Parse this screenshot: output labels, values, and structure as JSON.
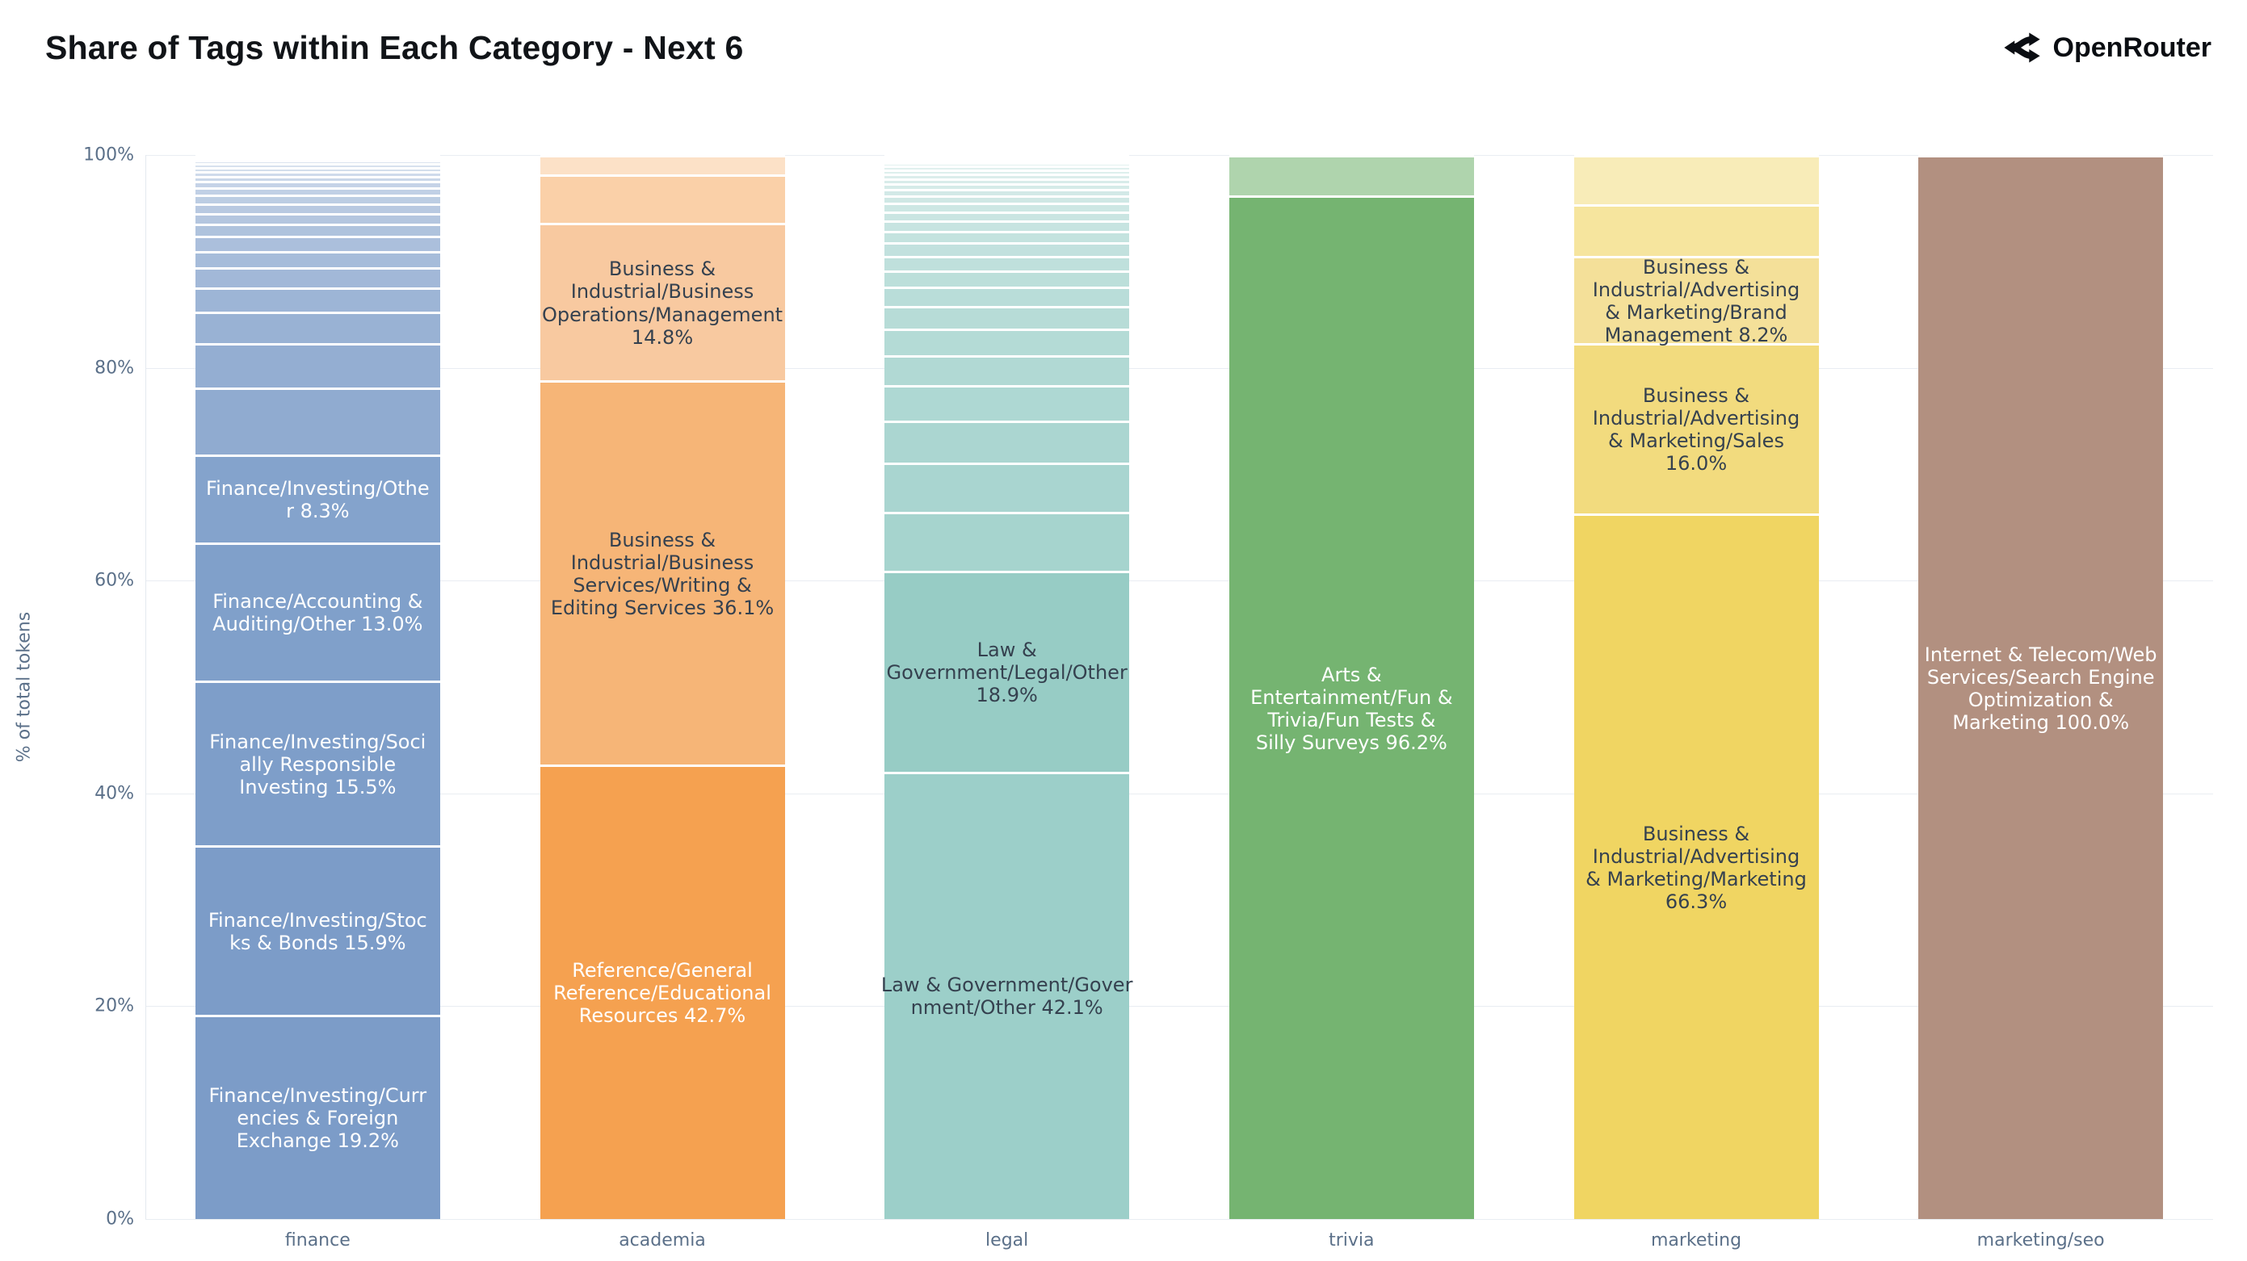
{
  "title": "Share of Tags within Each Category - Next 6",
  "brand": {
    "name": "OpenRouter",
    "icon": "openrouter-chevron-icon"
  },
  "y_axis": {
    "title": "% of total tokens",
    "tick_values": [
      0,
      20,
      40,
      60,
      80,
      100
    ],
    "tick_suffix": "%"
  },
  "x_axis": {
    "categories": [
      "finance",
      "academia",
      "legal",
      "trivia",
      "marketing",
      "marketing/seo"
    ]
  },
  "colors": {
    "title_text": "#111418",
    "brand_text": "#0a0d12",
    "axis_text": "#5b7089",
    "grid_line": "#e9edf2",
    "axis_line": "#e4e9ef",
    "segment_gap": "#ffffff",
    "label_dark": "#35414f",
    "label_light": "#ffffff",
    "background": "#ffffff"
  },
  "chart_data": {
    "type": "bar",
    "stacked": true,
    "title": "Share of Tags within Each Category - Next 6",
    "xlabel": "",
    "ylabel": "% of total tokens",
    "ylim": [
      0,
      100
    ],
    "grid": true,
    "legend": "none",
    "categories": [
      "finance",
      "academia",
      "legal",
      "trivia",
      "marketing",
      "marketing/seo"
    ],
    "bars": [
      {
        "category": "finance",
        "base_color": "#7C9CC8",
        "segments": [
          {
            "name": "Finance/Investing/Currencies & Foreign Exchange",
            "value": 19.2,
            "color": "#7C9CC8",
            "display": "Finance/Investing/Curr\nencies & Foreign\nExchange 19.2%"
          },
          {
            "name": "Finance/Investing/Stocks & Bonds",
            "value": 15.9,
            "color": "#7C9CC8",
            "display": "Finance/Investing/Stoc\nks & Bonds 15.9%"
          },
          {
            "name": "Finance/Investing/Socially Responsible Investing",
            "value": 15.5,
            "color": "#7E9EC9",
            "display": "Finance/Investing/Soci\nally Responsible\nInvesting 15.5%"
          },
          {
            "name": "Finance/Accounting & Auditing/Other",
            "value": 13.0,
            "color": "#80A0CA",
            "display": "Finance/Accounting &\nAuditing/Other 13.0%"
          },
          {
            "name": "Finance/Investing/Other",
            "value": 8.3,
            "color": "#84A3CC",
            "display": "Finance/Investing/Othe\nr 8.3%"
          }
        ],
        "unlabeled_remainder": 28.1,
        "tail_profile": [
          6.3,
          4.2,
          3.0,
          2.3,
          1.9,
          1.6,
          1.4,
          1.2,
          1.0,
          0.9,
          0.8,
          0.7,
          0.6,
          0.5,
          0.45,
          0.4,
          0.35,
          0.3,
          0.25,
          0.2
        ],
        "tail_mix_range": [
          0.15,
          0.8
        ]
      },
      {
        "category": "academia",
        "base_color": "#F5A150",
        "segments": [
          {
            "name": "Reference/General Reference/Educational Resources",
            "value": 42.7,
            "color": "#F5A150",
            "display": "Reference/General\nReference/Educational\nResources 42.7%"
          },
          {
            "name": "Business & Industrial/Business Services/Writing & Editing Services",
            "value": 36.1,
            "color": "#F6B577",
            "display": "Business &\nIndustrial/Business\nServices/Writing &\nEditing Services 36.1%"
          },
          {
            "name": "Business & Industrial/Business Operations/Management",
            "value": 14.8,
            "color": "#F8C9A0",
            "display": "Business &\nIndustrial/Business\nOperations/Management\n14.8%"
          }
        ],
        "unlabeled_remainder": 6.4,
        "tail_profile": [
          4.6,
          1.8
        ],
        "tail_mix_range": [
          0.5,
          0.68
        ]
      },
      {
        "category": "legal",
        "base_color": "#9CCFC9",
        "segments": [
          {
            "name": "Law & Government/Government/Other",
            "value": 42.1,
            "color": "#9CCFC9",
            "display": "Law & Government/Gover\nnment/Other 42.1%"
          },
          {
            "name": "Law & Government/Legal/Other",
            "value": 18.9,
            "color": "#97CCC5",
            "display": "Law &\nGovernment/Legal/Other\n18.9%"
          }
        ],
        "unlabeled_remainder": 39.0,
        "tail_profile": [
          5.6,
          4.7,
          4.0,
          3.4,
          2.9,
          2.5,
          2.15,
          1.85,
          1.6,
          1.4,
          1.25,
          1.1,
          1.0,
          0.9,
          0.8,
          0.7,
          0.6,
          0.55,
          0.5,
          0.45,
          0.4,
          0.35,
          0.3,
          0.25,
          0.2,
          0.15
        ],
        "tail_mix_range": [
          0.1,
          0.8
        ]
      },
      {
        "category": "trivia",
        "base_color": "#75B471",
        "segments": [
          {
            "name": "Arts & Entertainment/Fun & Trivia/Fun Tests & Silly Surveys",
            "value": 96.2,
            "color": "#75B471",
            "display": "Arts &\nEntertainment/Fun &\nTrivia/Fun Tests &\nSilly Surveys 96.2%"
          }
        ],
        "unlabeled_remainder": 3.8,
        "tail_profile": [
          3.8
        ],
        "tail_mix_range": [
          0.42,
          0.42
        ]
      },
      {
        "category": "marketing",
        "base_color": "#F0D562",
        "segments": [
          {
            "name": "Business & Industrial/Advertising & Marketing/Marketing",
            "value": 66.3,
            "color": "#F0D562",
            "display": "Business &\nIndustrial/Advertising\n& Marketing/Marketing\n66.3%"
          },
          {
            "name": "Business & Industrial/Advertising & Marketing/Sales",
            "value": 16.0,
            "color": "#F2DB7E",
            "display": "Business &\nIndustrial/Advertising\n& Marketing/Sales\n16.0%"
          },
          {
            "name": "Business & Industrial/Advertising & Marketing/Brand Management",
            "value": 8.2,
            "color": "#F4E099",
            "display": "Business &\nIndustrial/Advertising\n& Marketing/Brand\nManagement 8.2%"
          }
        ],
        "unlabeled_remainder": 9.5,
        "tail_profile": [
          4.9,
          4.6
        ],
        "tail_mix_range": [
          0.38,
          0.55
        ]
      },
      {
        "category": "marketing/seo",
        "base_color": "#B29080",
        "segments": [
          {
            "name": "Internet & Telecom/Web Services/Search Engine Optimization & Marketing",
            "value": 100.0,
            "color": "#B29080",
            "display": "Internet & Telecom/Web\nServices/Search Engine\nOptimization &\nMarketing 100.0%"
          }
        ],
        "unlabeled_remainder": 0.0,
        "tail_profile": [],
        "tail_mix_range": [
          0.0,
          0.0
        ]
      }
    ]
  }
}
